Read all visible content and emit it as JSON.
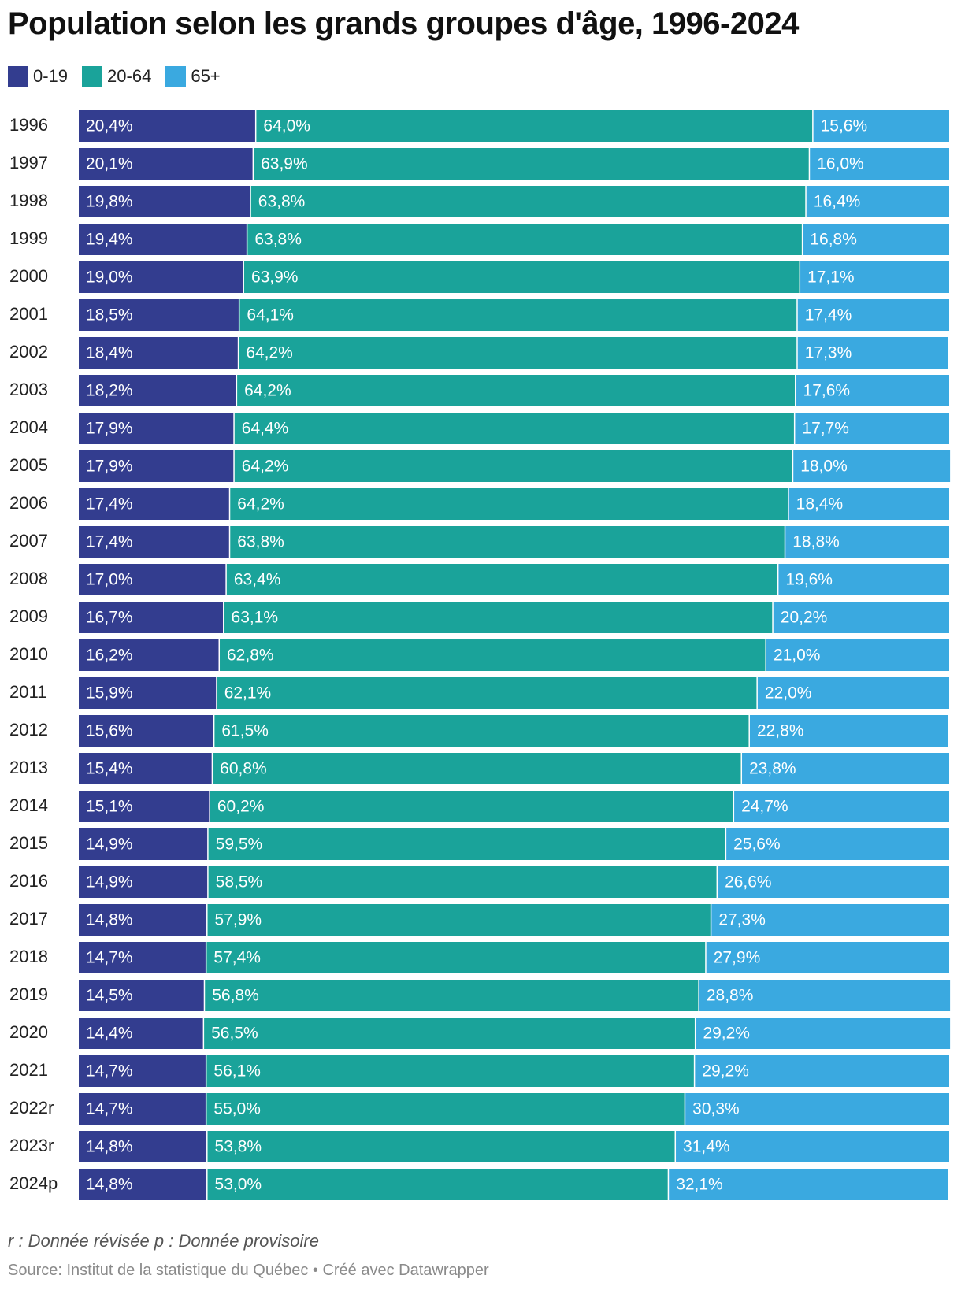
{
  "chart_data": {
    "type": "bar",
    "orientation": "horizontal",
    "stacked": true,
    "title": "Population selon les grands groupes d'âge, 1996-2024",
    "legend_position": "top-left",
    "grid": false,
    "xlim": [
      0,
      100
    ],
    "categories": [
      "1996",
      "1997",
      "1998",
      "1999",
      "2000",
      "2001",
      "2002",
      "2003",
      "2004",
      "2005",
      "2006",
      "2007",
      "2008",
      "2009",
      "2010",
      "2011",
      "2012",
      "2013",
      "2014",
      "2015",
      "2016",
      "2017",
      "2018",
      "2019",
      "2020",
      "2021",
      "2022r",
      "2023r",
      "2024p"
    ],
    "series": [
      {
        "name": "0-19",
        "color": "#333d8f",
        "values": [
          20.4,
          20.1,
          19.8,
          19.4,
          19.0,
          18.5,
          18.4,
          18.2,
          17.9,
          17.9,
          17.4,
          17.4,
          17.0,
          16.7,
          16.2,
          15.9,
          15.6,
          15.4,
          15.1,
          14.9,
          14.9,
          14.8,
          14.7,
          14.5,
          14.4,
          14.7,
          14.7,
          14.8,
          14.8
        ],
        "labels": [
          "20,4%",
          "20,1%",
          "19,8%",
          "19,4%",
          "19,0%",
          "18,5%",
          "18,4%",
          "18,2%",
          "17,9%",
          "17,9%",
          "17,4%",
          "17,4%",
          "17,0%",
          "16,7%",
          "16,2%",
          "15,9%",
          "15,6%",
          "15,4%",
          "15,1%",
          "14,9%",
          "14,9%",
          "14,8%",
          "14,7%",
          "14,5%",
          "14,4%",
          "14,7%",
          "14,7%",
          "14,8%",
          "14,8%"
        ]
      },
      {
        "name": "20-64",
        "color": "#1aa39a",
        "values": [
          64.0,
          63.9,
          63.8,
          63.8,
          63.9,
          64.1,
          64.2,
          64.2,
          64.4,
          64.2,
          64.2,
          63.8,
          63.4,
          63.1,
          62.8,
          62.1,
          61.5,
          60.8,
          60.2,
          59.5,
          58.5,
          57.9,
          57.4,
          56.8,
          56.5,
          56.1,
          55.0,
          53.8,
          53.0
        ],
        "labels": [
          "64,0%",
          "63,9%",
          "63,8%",
          "63,8%",
          "63,9%",
          "64,1%",
          "64,2%",
          "64,2%",
          "64,4%",
          "64,2%",
          "64,2%",
          "63,8%",
          "63,4%",
          "63,1%",
          "62,8%",
          "62,1%",
          "61,5%",
          "60,8%",
          "60,2%",
          "59,5%",
          "58,5%",
          "57,9%",
          "57,4%",
          "56,8%",
          "56,5%",
          "56,1%",
          "55,0%",
          "53,8%",
          "53,0%"
        ]
      },
      {
        "name": "65+",
        "color": "#3aa9e0",
        "values": [
          15.6,
          16.0,
          16.4,
          16.8,
          17.1,
          17.4,
          17.3,
          17.6,
          17.7,
          18.0,
          18.4,
          18.8,
          19.6,
          20.2,
          21.0,
          22.0,
          22.8,
          23.8,
          24.7,
          25.6,
          26.6,
          27.3,
          27.9,
          28.8,
          29.2,
          29.2,
          30.3,
          31.4,
          32.1
        ],
        "labels": [
          "15,6%",
          "16,0%",
          "16,4%",
          "16,8%",
          "17,1%",
          "17,4%",
          "17,3%",
          "17,6%",
          "17,7%",
          "18,0%",
          "18,4%",
          "18,8%",
          "19,6%",
          "20,2%",
          "21,0%",
          "22,0%",
          "22,8%",
          "23,8%",
          "24,7%",
          "25,6%",
          "26,6%",
          "27,3%",
          "27,9%",
          "28,8%",
          "29,2%",
          "29,2%",
          "30,3%",
          "31,4%",
          "32,1%"
        ]
      }
    ]
  },
  "notes": {
    "footnote": "r : Donnée révisée p : Donnée provisoire",
    "source": "Source: Institut de la statistique du Québec • Créé avec Datawrapper"
  }
}
